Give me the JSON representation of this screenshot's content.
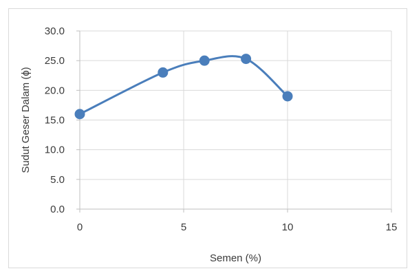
{
  "chart_data": {
    "type": "scatter",
    "title": "",
    "xlabel": "Semen (%)",
    "ylabel": "Sudut Geser Dalam (ɸ)",
    "xlim": [
      0,
      15
    ],
    "ylim": [
      0,
      30
    ],
    "xticks": [
      "0",
      "5",
      "10",
      "15"
    ],
    "yticks": [
      "0.0",
      "5.0",
      "10.0",
      "15.0",
      "20.0",
      "25.0",
      "30.0"
    ],
    "grid": true,
    "smooth_line": true,
    "legend": "none",
    "series": [
      {
        "x": [
          0,
          4,
          6,
          8,
          10
        ],
        "y": [
          16.0,
          23.0,
          25.0,
          25.3,
          19.0
        ],
        "color": "#4a7ebb"
      }
    ]
  }
}
